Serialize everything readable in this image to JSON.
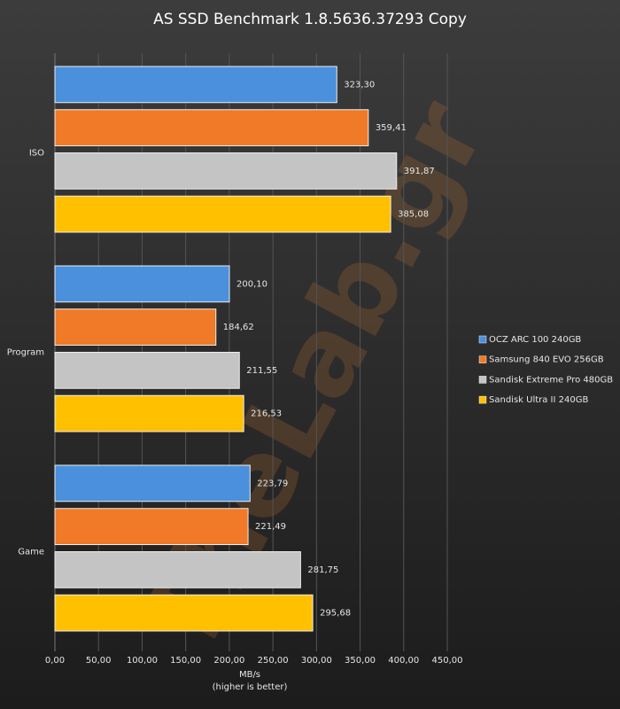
{
  "chart_data": {
    "type": "hbar",
    "title": "AS SSD Benchmark  1.8.5636.37293  Copy",
    "watermark": "TheLab.gr",
    "categories": [
      "ISO",
      "Program",
      "Game"
    ],
    "series": [
      {
        "name": "OCZ ARC 100 240GB",
        "color": "#4a90dc",
        "values": [
          323.3,
          200.1,
          223.79
        ],
        "value_labels": [
          "323,30",
          "200,10",
          "223,79"
        ]
      },
      {
        "name": "Samsung 840 EVO 256GB",
        "color": "#f07a28",
        "values": [
          359.41,
          184.62,
          221.49
        ],
        "value_labels": [
          "359,41",
          "184,62",
          "221,49"
        ]
      },
      {
        "name": "Sandisk Extreme Pro 480GB",
        "color": "#c4c4c4",
        "values": [
          391.87,
          211.55,
          281.75
        ],
        "value_labels": [
          "391,87",
          "211,55",
          "281,75"
        ]
      },
      {
        "name": "Sandisk Ultra II 240GB",
        "color": "#ffc000",
        "values": [
          385.08,
          216.53,
          295.68
        ],
        "value_labels": [
          "385,08",
          "216,53",
          "295,68"
        ]
      }
    ],
    "xlim": [
      0,
      450
    ],
    "xticks": [
      {
        "value": 0,
        "label": "0,00"
      },
      {
        "value": 50,
        "label": "50,00"
      },
      {
        "value": 100,
        "label": "100,00"
      },
      {
        "value": 150,
        "label": "150,00"
      },
      {
        "value": 200,
        "label": "200,00"
      },
      {
        "value": 250,
        "label": "250,00"
      },
      {
        "value": 300,
        "label": "300,00"
      },
      {
        "value": 350,
        "label": "350,00"
      },
      {
        "value": 400,
        "label": "400,00"
      },
      {
        "value": 450,
        "label": "450,00"
      }
    ],
    "xlabel": "MB/s",
    "xlabel_note": "(higher is better)",
    "grid": true,
    "legend": "right"
  }
}
